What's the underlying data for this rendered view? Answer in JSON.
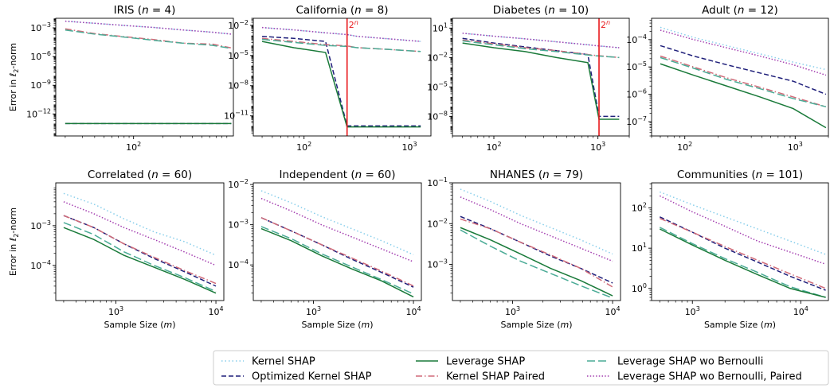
{
  "figure": {
    "y_label_prefix": "Error in ",
    "y_label_norm": "ℓ",
    "y_label_sub": "2",
    "y_label_suffix": "-norm",
    "x_label_prefix": "Sample Size (",
    "x_label_var": "m",
    "x_label_suffix": ")",
    "vline_label_base": "2",
    "vline_label_exp": "n"
  },
  "legend": {
    "placement": "bottom-right",
    "entries": [
      {
        "key": "kernel",
        "label": "Kernel SHAP"
      },
      {
        "key": "optimized",
        "label": "Optimized Kernel SHAP"
      },
      {
        "key": "leverage",
        "label": "Leverage SHAP"
      },
      {
        "key": "paired",
        "label": "Kernel SHAP Paired"
      },
      {
        "key": "wobern",
        "label": "Leverage SHAP wo Bernoulli"
      },
      {
        "key": "wobern_paired",
        "label": "Leverage SHAP wo Bernoulli, Paired"
      }
    ]
  },
  "styles": {
    "kernel": {
      "color": "#87ceeb",
      "dash": "1.5,3"
    },
    "optimized": {
      "color": "#1f1f7a",
      "dash": "6,3"
    },
    "leverage": {
      "color": "#1a7a3a",
      "dash": ""
    },
    "paired": {
      "color": "#d06a78",
      "dash": "8,3,1.5,3"
    },
    "wobern": {
      "color": "#4aab96",
      "dash": "10,4"
    },
    "wobern_paired": {
      "color": "#a43fb0",
      "dash": "1.5,2.2"
    }
  },
  "chart_data": [
    {
      "type": "line",
      "dataset": "IRIS",
      "n": "4",
      "xlog": true,
      "ylog": true,
      "xlim": [
        16,
        1050
      ],
      "ylim": [
        5e-15,
        0.01
      ],
      "xticks": [
        {
          "v": 100,
          "base": "10",
          "exp": "2"
        }
      ],
      "yticks": [
        {
          "v": 0.001,
          "base": "10",
          "exp": "−3"
        },
        {
          "v": 1e-06,
          "base": "10",
          "exp": "−6"
        },
        {
          "v": 1e-09,
          "base": "10",
          "exp": "−9"
        },
        {
          "v": 1e-12,
          "base": "10",
          "exp": "−12"
        }
      ],
      "x": [
        20,
        40,
        80,
        160,
        320,
        640,
        1000
      ],
      "series": {
        "kernel": [
          0.005,
          0.003,
          0.0018,
          0.0011,
          0.0006,
          0.00035,
          0.00022
        ],
        "optimized": [
          1e-13,
          1e-13,
          1e-13,
          1e-13,
          1e-13,
          1e-13,
          1e-13
        ],
        "leverage": [
          1e-13,
          1e-13,
          1e-13,
          1e-13,
          1e-13,
          1e-13,
          1e-13
        ],
        "paired": [
          0.0008,
          0.00025,
          0.00012,
          6e-05,
          2.5e-05,
          2e-05,
          8e-06
        ],
        "wobern": [
          0.0006,
          0.00022,
          0.00011,
          5e-05,
          2.5e-05,
          1.5e-05,
          7e-06
        ],
        "wobern_paired": [
          0.005,
          0.003,
          0.0018,
          0.0011,
          0.0006,
          0.00035,
          0.00022
        ]
      },
      "vline": null
    },
    {
      "type": "line",
      "dataset": "California",
      "n": "8",
      "xlog": true,
      "ylog": true,
      "xlim": [
        33,
        1600
      ],
      "ylim": [
        1e-13,
        0.05
      ],
      "xticks": [
        {
          "v": 100,
          "base": "10",
          "exp": "2"
        },
        {
          "v": 1000,
          "base": "10",
          "exp": "3"
        }
      ],
      "yticks": [
        {
          "v": 0.01,
          "base": "10",
          "exp": "−2"
        },
        {
          "v": 1e-05,
          "base": "10",
          "exp": "−5"
        },
        {
          "v": 1e-08,
          "base": "10",
          "exp": "−8"
        },
        {
          "v": 1e-11,
          "base": "10",
          "exp": "−11"
        }
      ],
      "x": [
        40,
        80,
        160,
        256,
        320,
        640,
        1280
      ],
      "series": {
        "kernel": [
          0.006,
          0.0035,
          0.0018,
          0.0012,
          0.0008,
          0.00045,
          0.00025
        ],
        "optimized": [
          0.0008,
          0.0005,
          0.00025,
          1e-12,
          1e-12,
          1e-12,
          1e-12
        ],
        "leverage": [
          0.00025,
          6e-05,
          2e-05,
          8e-13,
          8e-13,
          8e-13,
          8e-13
        ],
        "paired": [
          0.0005,
          0.00025,
          0.00012,
          9e-05,
          6e-05,
          4e-05,
          2.5e-05
        ],
        "wobern": [
          0.0004,
          0.0002,
          0.0001,
          8e-05,
          6e-05,
          4e-05,
          2.5e-05
        ],
        "wobern_paired": [
          0.006,
          0.0035,
          0.0018,
          0.0012,
          0.0008,
          0.00045,
          0.00025
        ]
      },
      "vline": 256
    },
    {
      "type": "line",
      "dataset": "Diabetes",
      "n": "10",
      "xlog": true,
      "ylog": true,
      "xlim": [
        40,
        2000
      ],
      "ylim": [
        1e-10,
        100
      ],
      "xticks": [
        {
          "v": 100,
          "base": "10",
          "exp": "2"
        },
        {
          "v": 1000,
          "base": "10",
          "exp": "3"
        }
      ],
      "yticks": [
        {
          "v": 10,
          "base": "10",
          "exp": "1"
        },
        {
          "v": 0.01,
          "base": "10",
          "exp": "−2"
        },
        {
          "v": 1e-05,
          "base": "10",
          "exp": "−5"
        },
        {
          "v": 1e-08,
          "base": "10",
          "exp": "−8"
        }
      ],
      "x": [
        50,
        100,
        200,
        400,
        800,
        1024,
        1600
      ],
      "series": {
        "kernel": [
          3,
          1.5,
          0.8,
          0.4,
          0.2,
          0.15,
          0.1
        ],
        "optimized": [
          0.9,
          0.3,
          0.12,
          0.05,
          0.02,
          1e-08,
          1e-08
        ],
        "leverage": [
          0.3,
          0.1,
          0.04,
          0.01,
          0.003,
          5e-09,
          5e-09
        ],
        "paired": [
          0.6,
          0.25,
          0.1,
          0.05,
          0.02,
          0.015,
          0.01
        ],
        "wobern": [
          0.5,
          0.2,
          0.08,
          0.04,
          0.018,
          0.014,
          0.01
        ],
        "wobern_paired": [
          3,
          1.5,
          0.8,
          0.4,
          0.2,
          0.15,
          0.1
        ]
      },
      "vline": 1024
    },
    {
      "type": "line",
      "dataset": "Adult",
      "n": "12",
      "xlog": true,
      "ylog": true,
      "xlim": [
        50,
        2000
      ],
      "ylim": [
        3e-08,
        0.0006
      ],
      "xticks": [
        {
          "v": 100,
          "base": "10",
          "exp": "2"
        },
        {
          "v": 1000,
          "base": "10",
          "exp": "3"
        }
      ],
      "yticks": [
        {
          "v": 0.0001,
          "base": "10",
          "exp": "−4"
        },
        {
          "v": 1e-05,
          "base": "10",
          "exp": "−5"
        },
        {
          "v": 1e-06,
          "base": "10",
          "exp": "−6"
        },
        {
          "v": 1e-07,
          "base": "10",
          "exp": "−7"
        }
      ],
      "x": [
        60,
        120,
        240,
        480,
        960,
        1900
      ],
      "series": {
        "kernel": [
          0.00028,
          0.00012,
          6e-05,
          3e-05,
          1.5e-05,
          8e-06
        ],
        "optimized": [
          6e-05,
          2.5e-05,
          1.2e-05,
          6e-06,
          3e-06,
          1e-06
        ],
        "leverage": [
          1.3e-05,
          5e-06,
          2e-06,
          8e-07,
          3e-07,
          6e-08
        ],
        "paired": [
          2.5e-05,
          1e-05,
          4e-06,
          1.8e-06,
          8e-07,
          3.5e-07
        ],
        "wobern": [
          2.2e-05,
          9e-06,
          3.5e-06,
          1.6e-06,
          7e-07,
          3.5e-07
        ],
        "wobern_paired": [
          0.00022,
          0.0001,
          5e-05,
          2.5e-05,
          1.2e-05,
          5e-06
        ]
      },
      "vline": null
    },
    {
      "type": "line",
      "dataset": "Correlated",
      "n": "60",
      "xlog": true,
      "ylog": true,
      "xlim": [
        250,
        12000
      ],
      "ylim": [
        1.3e-05,
        0.012
      ],
      "xticks": [
        {
          "v": 1000,
          "base": "10",
          "exp": "3"
        },
        {
          "v": 10000,
          "base": "10",
          "exp": "4"
        }
      ],
      "yticks": [
        {
          "v": 0.001,
          "base": "10",
          "exp": "−3"
        },
        {
          "v": 0.0001,
          "base": "10",
          "exp": "−4"
        }
      ],
      "x": [
        300,
        600,
        1200,
        2400,
        4800,
        10000
      ],
      "series": {
        "kernel": [
          0.0065,
          0.0035,
          0.0015,
          0.0007,
          0.0004,
          0.00018
        ],
        "optimized": [
          0.0018,
          0.0009,
          0.00035,
          0.00015,
          7e-05,
          3e-05
        ],
        "leverage": [
          0.0009,
          0.00045,
          0.00018,
          9e-05,
          4.5e-05,
          2e-05
        ],
        "paired": [
          0.0018,
          0.0009,
          0.00035,
          0.00016,
          7.5e-05,
          3.5e-05
        ],
        "wobern": [
          0.0012,
          0.0006,
          0.00022,
          0.0001,
          5e-05,
          2.2e-05
        ],
        "wobern_paired": [
          0.004,
          0.002,
          0.0009,
          0.00045,
          0.00022,
          0.0001
        ]
      },
      "vline": null
    },
    {
      "type": "line",
      "dataset": "Independent",
      "n": "60",
      "xlog": true,
      "ylog": true,
      "xlim": [
        250,
        12000
      ],
      "ylim": [
        1.3e-05,
        0.011
      ],
      "xticks": [
        {
          "v": 1000,
          "base": "10",
          "exp": "3"
        },
        {
          "v": 10000,
          "base": "10",
          "exp": "4"
        }
      ],
      "yticks": [
        {
          "v": 0.01,
          "base": "10",
          "exp": "−2"
        },
        {
          "v": 0.001,
          "base": "10",
          "exp": "−3"
        },
        {
          "v": 0.0001,
          "base": "10",
          "exp": "−4"
        }
      ],
      "x": [
        300,
        600,
        1200,
        2400,
        4800,
        10000
      ],
      "series": {
        "kernel": [
          0.007,
          0.0035,
          0.0016,
          0.0008,
          0.0004,
          0.00018
        ],
        "optimized": [
          0.0015,
          0.0007,
          0.00032,
          0.00014,
          6.5e-05,
          2.8e-05
        ],
        "leverage": [
          0.0008,
          0.0004,
          0.00017,
          8e-05,
          4e-05,
          1.6e-05
        ],
        "paired": [
          0.0015,
          0.0007,
          0.00032,
          0.00015,
          7e-05,
          3e-05
        ],
        "wobern": [
          0.0009,
          0.00045,
          0.00019,
          9e-05,
          4.3e-05,
          1.9e-05
        ],
        "wobern_paired": [
          0.0045,
          0.0022,
          0.001,
          0.0005,
          0.00025,
          0.00012
        ]
      },
      "vline": null
    },
    {
      "type": "line",
      "dataset": "NHANES",
      "n": "79",
      "xlog": true,
      "ylog": true,
      "xlim": [
        250,
        12000
      ],
      "ylim": [
        0.00013,
        0.1
      ],
      "xticks": [
        {
          "v": 1000,
          "base": "10",
          "exp": "3"
        },
        {
          "v": 10000,
          "base": "10",
          "exp": "4"
        }
      ],
      "yticks": [
        {
          "v": 0.1,
          "base": "10",
          "exp": "−1"
        },
        {
          "v": 0.01,
          "base": "10",
          "exp": "−2"
        },
        {
          "v": 0.001,
          "base": "10",
          "exp": "−3"
        }
      ],
      "x": [
        300,
        600,
        1200,
        2400,
        4800,
        10000
      ],
      "series": {
        "kernel": [
          0.07,
          0.035,
          0.016,
          0.008,
          0.004,
          0.0018
        ],
        "optimized": [
          0.015,
          0.0075,
          0.0035,
          0.0016,
          0.0008,
          0.00035
        ],
        "leverage": [
          0.008,
          0.004,
          0.0018,
          0.0008,
          0.0004,
          0.00017
        ],
        "paired": [
          0.013,
          0.0075,
          0.0035,
          0.0017,
          0.0008,
          0.00028
        ],
        "wobern": [
          0.007,
          0.0028,
          0.0012,
          0.0006,
          0.0003,
          0.00015
        ],
        "wobern_paired": [
          0.045,
          0.022,
          0.01,
          0.005,
          0.0025,
          0.0012
        ]
      },
      "vline": null
    },
    {
      "type": "line",
      "dataset": "Communities",
      "n": "101",
      "xlog": true,
      "ylog": true,
      "xlim": [
        420,
        18000
      ],
      "ylim": [
        0.5,
        420
      ],
      "xticks": [
        {
          "v": 1000,
          "base": "10",
          "exp": "3"
        },
        {
          "v": 10000,
          "base": "10",
          "exp": "4"
        }
      ],
      "yticks": [
        {
          "v": 100,
          "base": "10",
          "exp": "2"
        },
        {
          "v": 10,
          "base": "10",
          "exp": "1"
        },
        {
          "v": 1,
          "base": "10",
          "exp": "0"
        }
      ],
      "x": [
        500,
        1000,
        2000,
        4000,
        8000,
        17000
      ],
      "series": {
        "kernel": [
          250,
          120,
          60,
          30,
          15,
          7
        ],
        "optimized": [
          60,
          25,
          10,
          4.5,
          2,
          0.9
        ],
        "leverage": [
          30,
          12,
          5,
          2.2,
          1,
          0.6
        ],
        "paired": [
          55,
          25,
          11,
          5,
          2.3,
          1
        ],
        "wobern": [
          33,
          13,
          5.5,
          2.5,
          1.1,
          0.6
        ],
        "wobern_paired": [
          200,
          80,
          35,
          15,
          8,
          4
        ]
      },
      "vline": null
    }
  ]
}
